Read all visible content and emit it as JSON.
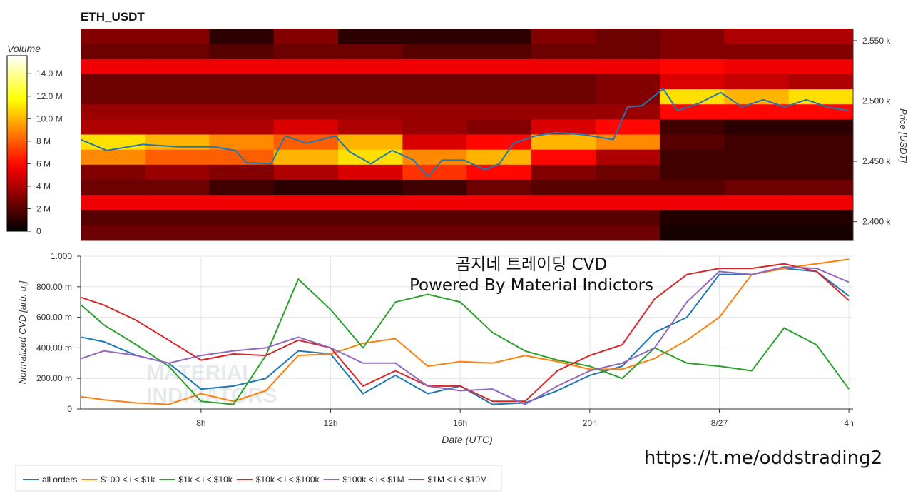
{
  "chart_data": [
    {
      "type": "heatmap",
      "title": "ETH_USDT",
      "ylabel": "Price [USDT]",
      "colormap": "hot",
      "xlim": [
        4.28,
        28.13
      ],
      "ylim": [
        2385,
        2560
      ],
      "yticks": [
        {
          "value": 2400,
          "label": "2.400 k"
        },
        {
          "value": 2450,
          "label": "2.450 k"
        },
        {
          "value": 2500,
          "label": "2.500 k"
        },
        {
          "value": 2550,
          "label": "2.550 k"
        }
      ],
      "x_bins": [
        4.28,
        6.27,
        8.25,
        10.24,
        12.23,
        14.22,
        16.2,
        18.19,
        20.18,
        22.16,
        24.15,
        26.14,
        28.13
      ],
      "y_bins": [
        2385,
        2397.5,
        2410,
        2422.5,
        2435,
        2447.5,
        2460,
        2472.5,
        2485,
        2497.5,
        2510,
        2522.5,
        2535,
        2547.5,
        2560
      ],
      "z": [
        [
          2.5,
          2.5,
          2.5,
          2.5,
          2.5,
          2.5,
          2.5,
          2.5,
          2.5,
          0.5,
          0.5,
          0.5
        ],
        [
          2,
          2,
          2,
          2,
          2,
          2,
          2,
          2,
          2,
          0.8,
          0.8,
          0.8
        ],
        [
          5.5,
          5.5,
          5.5,
          5.5,
          5.5,
          5.5,
          5.5,
          5.5,
          5.5,
          5.5,
          5.5,
          5.5
        ],
        [
          2.5,
          2.5,
          1.5,
          1,
          1,
          1.5,
          2.5,
          2,
          2,
          2,
          2.5,
          2.5
        ],
        [
          3,
          3.5,
          3,
          4,
          5,
          7,
          6,
          3,
          2.5,
          1.5,
          1.5,
          1.5
        ],
        [
          9,
          8,
          8,
          10,
          11,
          9,
          10,
          6,
          4,
          1.5,
          1.5,
          1.5
        ],
        [
          11,
          10,
          9,
          8,
          10,
          5,
          6,
          10,
          9,
          2,
          1.5,
          1.5
        ],
        [
          4,
          4,
          4,
          5,
          4,
          3.5,
          3,
          5,
          6,
          1.5,
          1,
          1
        ],
        [
          3.5,
          3.5,
          3.5,
          3.5,
          3.5,
          3.5,
          3.5,
          3.5,
          3.5,
          6,
          6,
          6
        ],
        [
          2.5,
          2.5,
          2.5,
          2.5,
          2.5,
          2.5,
          2.5,
          2.5,
          3,
          11,
          10,
          11
        ],
        [
          2.5,
          2.5,
          2.5,
          2.5,
          2.5,
          2.5,
          2.5,
          2.5,
          3,
          5,
          4.5,
          4
        ],
        [
          5.5,
          5.5,
          5.5,
          5.5,
          5.5,
          5.5,
          5.5,
          5.5,
          5.5,
          6,
          5.5,
          5.5
        ],
        [
          2.5,
          2.5,
          2,
          2.5,
          2.5,
          2,
          2,
          2.5,
          2.5,
          3,
          3,
          3
        ],
        [
          3,
          3,
          1,
          3,
          1,
          1,
          1,
          3,
          2.5,
          3,
          4,
          4
        ]
      ],
      "colorbar": {
        "label": "Volume",
        "lim": [
          0,
          15.6
        ],
        "ticks": [
          0,
          {
            "value": 2,
            "label": "2 M"
          },
          {
            "value": 4,
            "label": "4 M"
          },
          {
            "value": 6,
            "label": "6 M"
          },
          {
            "value": 8,
            "label": "8 M"
          },
          {
            "value": 10,
            "label": "10.0 M"
          },
          {
            "value": 12,
            "label": "12.0 M"
          },
          {
            "value": 14,
            "label": "14.0 M"
          }
        ]
      },
      "series": [
        {
          "color": "#1f77b4",
          "x": [
            4.28,
            5.09,
            6.19,
            7.3,
            8.4,
            9.06,
            9.39,
            10.16,
            10.6,
            11.26,
            12.14,
            12.58,
            13.24,
            13.9,
            14.56,
            15.0,
            15.44,
            16.11,
            16.77,
            17.21,
            17.65,
            18.31,
            18.97,
            19.85,
            20.73,
            21.17,
            21.61,
            22.27,
            22.71,
            23.37,
            24.04,
            24.7,
            25.36,
            26.02,
            26.68,
            27.34,
            28.0
          ],
          "values": [
            2468,
            2459,
            2464,
            2462,
            2462,
            2459,
            2449,
            2448,
            2471,
            2465,
            2471,
            2458,
            2448,
            2459,
            2451,
            2437,
            2451,
            2451,
            2443,
            2448,
            2465,
            2471,
            2474,
            2472,
            2468,
            2495,
            2496,
            2510,
            2492,
            2498,
            2507,
            2495,
            2501,
            2495,
            2501,
            2495,
            2492
          ]
        }
      ]
    },
    {
      "type": "line",
      "xlabel": "Date (UTC)",
      "ylabel": "Normalized CVD [arb. u.]",
      "annotations": [
        "곰지네 트레이딩 CVD",
        "Powered By Material Indictors"
      ],
      "logo_watermark": [
        "MATERIAL",
        "INDICATORS"
      ],
      "xlim": [
        4.28,
        28.13
      ],
      "ylim": [
        0,
        1.0
      ],
      "xticks": [
        {
          "value": 8,
          "label": "8h"
        },
        {
          "value": 12,
          "label": "12h"
        },
        {
          "value": 16,
          "label": "16h"
        },
        {
          "value": 20,
          "label": "20h"
        },
        {
          "value": 24,
          "label": "8/27"
        },
        {
          "value": 28,
          "label": "4h"
        }
      ],
      "yticks": [
        0,
        {
          "value": 0.2,
          "label": "200.00 m"
        },
        {
          "value": 0.4,
          "label": "400.00 m"
        },
        {
          "value": 0.6,
          "label": "600.00 m"
        },
        {
          "value": 0.8,
          "label": "800.00 m"
        },
        {
          "value": 1.0,
          "label": "1.000"
        }
      ],
      "grid": true,
      "legend": "bottom",
      "x": [
        4.3,
        5,
        6,
        7,
        8,
        9,
        10,
        11,
        12,
        13,
        14,
        15,
        16,
        17,
        18,
        19,
        20,
        21,
        22,
        23,
        24,
        25,
        26,
        27,
        28
      ],
      "series": [
        {
          "name": "all orders",
          "color": "#1f77b4",
          "values": [
            0.47,
            0.44,
            0.35,
            0.3,
            0.13,
            0.15,
            0.2,
            0.38,
            0.36,
            0.1,
            0.22,
            0.1,
            0.15,
            0.03,
            0.04,
            0.12,
            0.22,
            0.28,
            0.5,
            0.6,
            0.88,
            0.88,
            0.92,
            0.9,
            0.74
          ]
        },
        {
          "name": "$100 < i < $1k",
          "color": "#ff7f0e",
          "values": [
            0.08,
            0.06,
            0.04,
            0.03,
            0.1,
            0.05,
            0.12,
            0.35,
            0.36,
            0.43,
            0.46,
            0.28,
            0.31,
            0.3,
            0.35,
            0.31,
            0.26,
            0.26,
            0.33,
            0.45,
            0.6,
            0.88,
            0.92,
            0.95,
            0.98
          ]
        },
        {
          "name": "$1k < i < $10k",
          "color": "#2ca02c",
          "values": [
            0.68,
            0.55,
            0.42,
            0.28,
            0.05,
            0.03,
            0.35,
            0.85,
            0.65,
            0.4,
            0.7,
            0.75,
            0.7,
            0.5,
            0.38,
            0.32,
            0.28,
            0.2,
            0.4,
            0.3,
            0.28,
            0.25,
            0.53,
            0.42,
            0.13
          ]
        },
        {
          "name": "$10k < i < $100k",
          "color": "#d62728",
          "values": [
            0.73,
            0.68,
            0.58,
            0.45,
            0.32,
            0.36,
            0.35,
            0.45,
            0.4,
            0.15,
            0.25,
            0.15,
            0.15,
            0.05,
            0.05,
            0.25,
            0.35,
            0.42,
            0.72,
            0.88,
            0.92,
            0.92,
            0.95,
            0.9,
            0.71
          ]
        },
        {
          "name": "$100k < i < $1M",
          "color": "#9467bd",
          "values": [
            0.33,
            0.38,
            0.35,
            0.3,
            0.35,
            0.38,
            0.4,
            0.47,
            0.4,
            0.3,
            0.3,
            0.15,
            0.12,
            0.13,
            0.03,
            0.15,
            0.25,
            0.3,
            0.4,
            0.7,
            0.9,
            0.88,
            0.93,
            0.92,
            0.83
          ]
        },
        {
          "name": "$1M < i < $10M",
          "color": "#8c564b",
          "values": [
            null,
            null,
            null,
            null,
            null,
            null,
            null,
            null,
            null,
            null,
            null,
            null,
            null,
            null,
            null,
            null,
            null,
            null,
            null,
            null,
            null,
            null,
            null,
            null,
            null
          ]
        }
      ]
    }
  ],
  "footer": "https://t.me/oddstrading2"
}
